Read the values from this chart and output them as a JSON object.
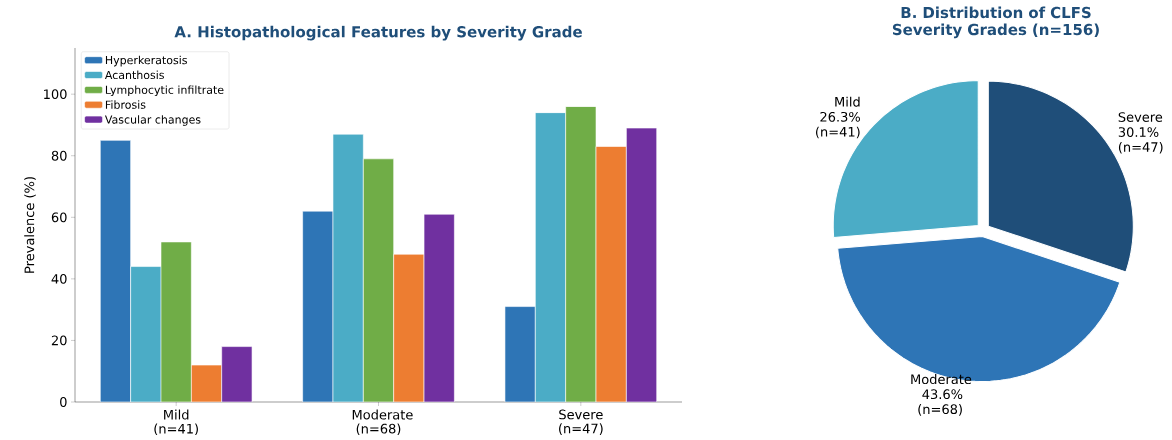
{
  "chart_data": [
    {
      "type": "bar",
      "title": "A. Histopathological Features by Severity Grade",
      "ylabel": "Prevalence (%)",
      "categories": [
        "Mild (n=41)",
        "Moderate (n=68)",
        "Severe (n=47)"
      ],
      "series": [
        {
          "name": "Hyperkeratosis",
          "color": "#2e75b6",
          "values": [
            85,
            62,
            31
          ]
        },
        {
          "name": "Acanthosis",
          "color": "#4bacc6",
          "values": [
            44,
            87,
            94
          ]
        },
        {
          "name": "Lymphocytic infiltrate",
          "color": "#70ad47",
          "values": [
            52,
            79,
            96
          ]
        },
        {
          "name": "Fibrosis",
          "color": "#ed7d31",
          "values": [
            12,
            48,
            83
          ]
        },
        {
          "name": "Vascular changes",
          "color": "#7030a0",
          "values": [
            18,
            61,
            89
          ]
        }
      ],
      "ylim": [
        0,
        115
      ],
      "yticks": [
        0,
        20,
        40,
        60,
        80,
        100
      ],
      "legend": "top left",
      "grid": false
    },
    {
      "type": "pie",
      "title": "B. Distribution of CLFS Severity Grades (n=156)",
      "categories": [
        "Mild",
        "Moderate",
        "Severe"
      ],
      "values": [
        26.3,
        43.6,
        30.1
      ],
      "value_labels": [
        "26.3% (n=41)",
        "43.6% (n=68)",
        "30.1% (n=47)"
      ],
      "colors": [
        "#4bacc6",
        "#2e75b6",
        "#1f4e79"
      ]
    }
  ]
}
